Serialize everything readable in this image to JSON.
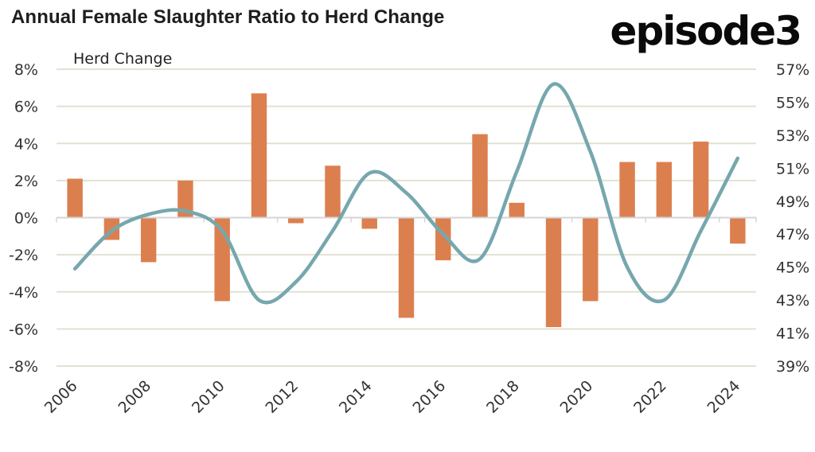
{
  "header": {
    "title": "Annual Female Slaughter Ratio to Herd Change",
    "logo": "episode3"
  },
  "colors": {
    "bars": "#dc7f4f",
    "line": "#76a7ae",
    "grid": "#e2e2d2",
    "axis": "#d6d6d6",
    "text": "#333333"
  },
  "chart_data": {
    "type": "bar",
    "title": "Annual Female Slaughter Ratio to Herd Change",
    "xlabel": "",
    "ylabel": "Herd Change",
    "y2label": "",
    "categories": [
      "2006",
      "2007",
      "2008",
      "2009",
      "2010",
      "2011",
      "2012",
      "2013",
      "2014",
      "2015",
      "2016",
      "2017",
      "2018",
      "2019",
      "2020",
      "2021",
      "2022",
      "2023",
      "2024"
    ],
    "x_tick_labels": [
      "2006",
      "2008",
      "2010",
      "2012",
      "2014",
      "2016",
      "2018",
      "2020",
      "2022",
      "2024"
    ],
    "ylim": [
      -8,
      8
    ],
    "y_ticks": [
      8,
      6,
      4,
      2,
      0,
      -2,
      -4,
      -6,
      -8
    ],
    "y_tick_labels": [
      "8%",
      "6%",
      "4%",
      "2%",
      "0%",
      "-2%",
      "-4%",
      "-6%",
      "-8%"
    ],
    "y2lim": [
      39,
      57
    ],
    "y2_ticks": [
      57,
      55,
      53,
      51,
      49,
      47,
      45,
      43,
      41,
      39
    ],
    "y2_tick_labels": [
      "57%",
      "55%",
      "53%",
      "51%",
      "49%",
      "47%",
      "45%",
      "43%",
      "41%",
      "39%"
    ],
    "grid": true,
    "legend": "none",
    "series": [
      {
        "name": "Herd Change",
        "type": "bar",
        "axis": "left",
        "unit": "%",
        "values": [
          2.1,
          -1.2,
          -2.4,
          2.0,
          -4.5,
          6.7,
          -0.3,
          2.8,
          -0.6,
          -5.4,
          -2.3,
          4.5,
          0.8,
          -5.9,
          -4.5,
          3.0,
          3.0,
          4.1,
          -1.4
        ]
      },
      {
        "name": "Female Slaughter Ratio",
        "type": "line",
        "smooth": true,
        "axis": "right",
        "unit": "%",
        "values": [
          44.9,
          47.2,
          48.2,
          48.4,
          47.2,
          43.0,
          44.1,
          47.2,
          50.7,
          49.5,
          47.0,
          45.5,
          50.8,
          56.1,
          52.0,
          45.0,
          43.0,
          47.2,
          51.6
        ]
      }
    ]
  }
}
